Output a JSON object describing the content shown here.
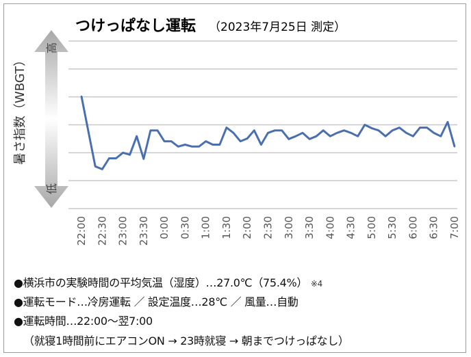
{
  "chart_data": {
    "type": "line",
    "title": "つけっぱなし運転",
    "subtitle": "（2023年7月25日 測定）",
    "ylabel": "暑さ指数（WBGT）",
    "y_high_label": "高",
    "y_low_label": "低",
    "ylim": [
      0,
      6
    ],
    "grid": true,
    "y_units_note": "relative scale (no numeric tick labels shown)",
    "tick_labels": [
      "22:00",
      "22:30",
      "23:00",
      "23:30",
      "0:00",
      "0:30",
      "1:00",
      "1:30",
      "2:00",
      "2:30",
      "3:00",
      "3:30",
      "4:00",
      "4:30",
      "5:00",
      "5:30",
      "6:00",
      "6:30",
      "7:00"
    ],
    "interval_minutes": 10,
    "series": [
      {
        "name": "WBGT",
        "color": "#4a6fb0",
        "values": [
          4.02,
          2.76,
          1.51,
          1.41,
          1.8,
          1.8,
          2.0,
          1.93,
          2.59,
          1.78,
          2.8,
          2.8,
          2.41,
          2.41,
          2.22,
          2.29,
          2.22,
          2.22,
          2.41,
          2.29,
          2.29,
          2.9,
          2.71,
          2.41,
          2.51,
          2.8,
          2.29,
          2.71,
          2.8,
          2.8,
          2.49,
          2.59,
          2.71,
          2.49,
          2.59,
          2.8,
          2.59,
          2.71,
          2.8,
          2.71,
          2.59,
          3.0,
          2.88,
          2.8,
          2.59,
          2.8,
          2.9,
          2.71,
          2.59,
          2.9,
          2.9,
          2.71,
          2.59,
          3.1,
          2.22
        ]
      }
    ]
  },
  "notes": {
    "line1": "●横浜市の実験時間の平均気温（湿度）…27.0℃（75.4%）",
    "line1_ref": "※4",
    "line2": "●運転モード…冷房運転 ／ 設定温度…28℃ ／ 風量…自動",
    "line3": "●運転時間…22:00～翌7:00",
    "line4": "（就寝1時間前にエアコンON → 23時就寝 → 朝までつけっぱなし）"
  }
}
